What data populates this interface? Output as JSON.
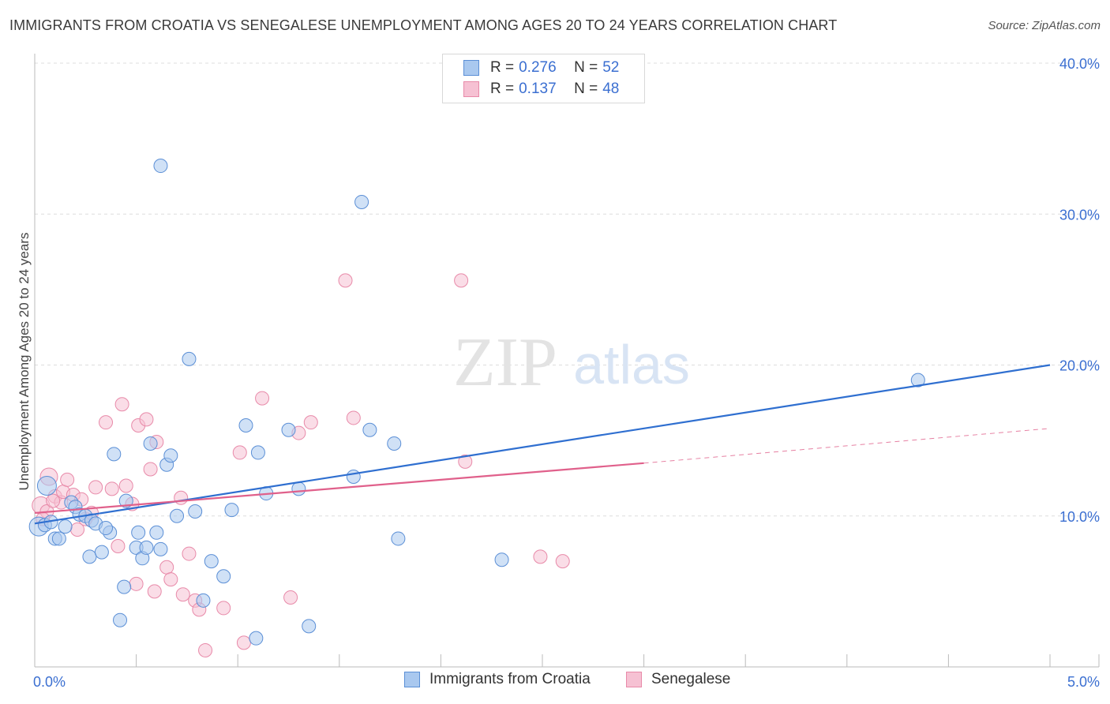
{
  "title": "IMMIGRANTS FROM CROATIA VS SENEGALESE UNEMPLOYMENT AMONG AGES 20 TO 24 YEARS CORRELATION CHART",
  "source": "Source: ZipAtlas.com",
  "watermark": {
    "zip": "ZIP",
    "atlas": "atlas"
  },
  "legend": {
    "series1": {
      "r_label": "R = ",
      "r_value": "0.276",
      "n_label": "N = ",
      "n_value": "52"
    },
    "series2": {
      "r_label": "R = ",
      "r_value": "0.137",
      "n_label": "N = ",
      "n_value": "48"
    }
  },
  "colors": {
    "blue_fill": "#a9c8ef",
    "blue_stroke": "#5b8fd6",
    "blue_line": "#2f6fd0",
    "pink_fill": "#f6c1d3",
    "pink_stroke": "#e88aa9",
    "pink_line": "#e0608b",
    "grid": "#dddddd",
    "tick_text": "#3b6fd1"
  },
  "chart_data": {
    "type": "scatter",
    "title": "IMMIGRANTS FROM CROATIA VS SENEGALESE UNEMPLOYMENT AMONG AGES 20 TO 24 YEARS CORRELATION CHART",
    "xlabel": "",
    "ylabel": "Unemployment Among Ages 20 to 24 years",
    "xlim": [
      0,
      5
    ],
    "ylim": [
      0,
      40
    ],
    "x_tick_labels": [
      "0.0%",
      "5.0%"
    ],
    "y_ticks": [
      10,
      20,
      30,
      40
    ],
    "y_tick_labels": [
      "10.0%",
      "20.0%",
      "30.0%",
      "40.0%"
    ],
    "grid": true,
    "legend_position": "top-center",
    "series": [
      {
        "name": "Immigrants from Croatia",
        "r": 0.276,
        "n": 52,
        "trend": {
          "x0": 0.0,
          "y0": 9.5,
          "x1": 5.0,
          "y1": 20.0
        },
        "points": [
          [
            0.02,
            9.3
          ],
          [
            0.05,
            9.4
          ],
          [
            0.06,
            12.0
          ],
          [
            0.1,
            8.5
          ],
          [
            0.12,
            8.5
          ],
          [
            0.15,
            9.3
          ],
          [
            0.18,
            10.9
          ],
          [
            0.2,
            10.6
          ],
          [
            0.22,
            10.1
          ],
          [
            0.25,
            10.0
          ],
          [
            0.28,
            9.7
          ],
          [
            0.3,
            9.5
          ],
          [
            0.27,
            7.3
          ],
          [
            0.33,
            7.6
          ],
          [
            0.37,
            8.9
          ],
          [
            0.39,
            14.1
          ],
          [
            0.42,
            3.1
          ],
          [
            0.44,
            5.3
          ],
          [
            0.45,
            11.0
          ],
          [
            0.5,
            7.9
          ],
          [
            0.51,
            8.9
          ],
          [
            0.53,
            7.2
          ],
          [
            0.55,
            7.9
          ],
          [
            0.57,
            14.8
          ],
          [
            0.6,
            8.9
          ],
          [
            0.62,
            7.8
          ],
          [
            0.62,
            33.2
          ],
          [
            0.65,
            13.4
          ],
          [
            0.67,
            14.0
          ],
          [
            0.7,
            10.0
          ],
          [
            0.76,
            20.4
          ],
          [
            0.79,
            10.3
          ],
          [
            0.83,
            4.4
          ],
          [
            0.87,
            7.0
          ],
          [
            0.93,
            6.0
          ],
          [
            0.97,
            10.4
          ],
          [
            1.09,
            1.9
          ],
          [
            1.04,
            16.0
          ],
          [
            1.1,
            14.2
          ],
          [
            1.14,
            11.5
          ],
          [
            1.25,
            15.7
          ],
          [
            1.3,
            11.8
          ],
          [
            1.35,
            2.7
          ],
          [
            1.57,
            12.6
          ],
          [
            1.61,
            30.8
          ],
          [
            1.65,
            15.7
          ],
          [
            1.77,
            14.8
          ],
          [
            1.79,
            8.5
          ],
          [
            2.3,
            7.1
          ],
          [
            4.35,
            19.0
          ],
          [
            0.08,
            9.6
          ],
          [
            0.35,
            9.2
          ]
        ]
      },
      {
        "name": "Senegalese",
        "r": 0.137,
        "n": 48,
        "trend": {
          "x0": 0.0,
          "y0": 10.2,
          "x1": 3.0,
          "y1": 13.5,
          "dashed_to": {
            "x": 5.0,
            "y": 15.8
          }
        },
        "points": [
          [
            0.03,
            10.7
          ],
          [
            0.06,
            10.3
          ],
          [
            0.07,
            12.6
          ],
          [
            0.1,
            11.3
          ],
          [
            0.13,
            10.9
          ],
          [
            0.14,
            11.6
          ],
          [
            0.16,
            12.4
          ],
          [
            0.19,
            11.4
          ],
          [
            0.21,
            9.1
          ],
          [
            0.23,
            11.1
          ],
          [
            0.25,
            9.8
          ],
          [
            0.28,
            10.2
          ],
          [
            0.3,
            11.9
          ],
          [
            0.35,
            16.2
          ],
          [
            0.38,
            11.8
          ],
          [
            0.41,
            8.0
          ],
          [
            0.43,
            17.4
          ],
          [
            0.45,
            12.0
          ],
          [
            0.48,
            10.8
          ],
          [
            0.5,
            5.5
          ],
          [
            0.51,
            16.0
          ],
          [
            0.55,
            16.4
          ],
          [
            0.57,
            13.1
          ],
          [
            0.59,
            5.0
          ],
          [
            0.6,
            14.9
          ],
          [
            0.65,
            6.6
          ],
          [
            0.67,
            5.8
          ],
          [
            0.72,
            11.2
          ],
          [
            0.73,
            4.8
          ],
          [
            0.76,
            7.5
          ],
          [
            0.79,
            4.4
          ],
          [
            0.81,
            3.8
          ],
          [
            0.84,
            1.1
          ],
          [
            0.93,
            3.9
          ],
          [
            1.01,
            14.2
          ],
          [
            1.03,
            1.6
          ],
          [
            1.12,
            17.8
          ],
          [
            1.26,
            4.6
          ],
          [
            1.3,
            15.5
          ],
          [
            1.36,
            16.2
          ],
          [
            1.53,
            25.6
          ],
          [
            1.57,
            16.5
          ],
          [
            2.1,
            25.6
          ],
          [
            2.12,
            13.6
          ],
          [
            2.49,
            7.3
          ],
          [
            2.6,
            7.0
          ],
          [
            0.04,
            9.8
          ],
          [
            0.09,
            11.0
          ]
        ]
      }
    ]
  }
}
